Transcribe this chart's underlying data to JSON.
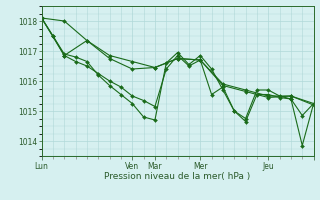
{
  "background_color": "#d6f0f0",
  "grid_color": "#b0d8d8",
  "line_color": "#1a6b1a",
  "marker_color": "#1a6b1a",
  "xlabel": "Pression niveau de la mer( hPa )",
  "ylim": [
    1013.5,
    1018.5
  ],
  "yticks": [
    1014,
    1015,
    1016,
    1017,
    1018
  ],
  "xlim": [
    0,
    288
  ],
  "day_pos": [
    0,
    96,
    120,
    168,
    240,
    288
  ],
  "day_labels": [
    "Lun",
    "Ven",
    "Mar",
    "Mer",
    "Jeu",
    ""
  ],
  "minor_ticks": [
    0,
    12,
    24,
    36,
    48,
    60,
    72,
    84,
    96,
    108,
    120,
    132,
    144,
    156,
    168,
    180,
    192,
    204,
    216,
    228,
    240,
    252,
    264,
    276,
    288
  ],
  "series1": {
    "x": [
      0,
      24,
      48,
      72,
      96,
      120,
      144,
      168,
      192,
      216,
      240,
      264,
      288
    ],
    "y": [
      1018.1,
      1018.0,
      1017.35,
      1016.85,
      1016.65,
      1016.45,
      1016.75,
      1016.7,
      1015.9,
      1015.7,
      1015.5,
      1015.5,
      1015.2
    ]
  },
  "series2": {
    "x": [
      0,
      24,
      48,
      72,
      96,
      120,
      144,
      168,
      192,
      216,
      240,
      264,
      288
    ],
    "y": [
      1018.1,
      1016.85,
      1017.35,
      1016.75,
      1016.4,
      1016.45,
      1016.75,
      1016.7,
      1015.85,
      1015.65,
      1015.45,
      1015.5,
      1015.25
    ]
  },
  "series3": {
    "x": [
      0,
      12,
      24,
      36,
      48,
      60,
      72,
      84,
      96,
      108,
      120,
      132,
      144,
      156,
      168,
      180,
      192,
      204,
      216,
      228,
      240,
      252,
      264,
      276,
      288
    ],
    "y": [
      1018.1,
      1017.5,
      1016.9,
      1016.8,
      1016.65,
      1016.2,
      1015.85,
      1015.55,
      1015.25,
      1014.8,
      1014.7,
      1016.6,
      1016.95,
      1016.55,
      1016.85,
      1016.4,
      1015.7,
      1015.0,
      1014.75,
      1015.7,
      1015.7,
      1015.5,
      1015.4,
      1014.85,
      1015.25
    ]
  },
  "series4": {
    "x": [
      0,
      12,
      24,
      36,
      48,
      60,
      72,
      84,
      96,
      108,
      120,
      132,
      144,
      156,
      168,
      180,
      192,
      204,
      216,
      228,
      240,
      252,
      264,
      276,
      288
    ],
    "y": [
      1018.1,
      1017.5,
      1016.85,
      1016.65,
      1016.5,
      1016.25,
      1016.0,
      1015.8,
      1015.5,
      1015.35,
      1015.15,
      1016.4,
      1016.85,
      1016.5,
      1016.7,
      1015.55,
      1015.8,
      1015.0,
      1014.65,
      1015.55,
      1015.55,
      1015.45,
      1015.4,
      1013.85,
      1015.25
    ]
  }
}
